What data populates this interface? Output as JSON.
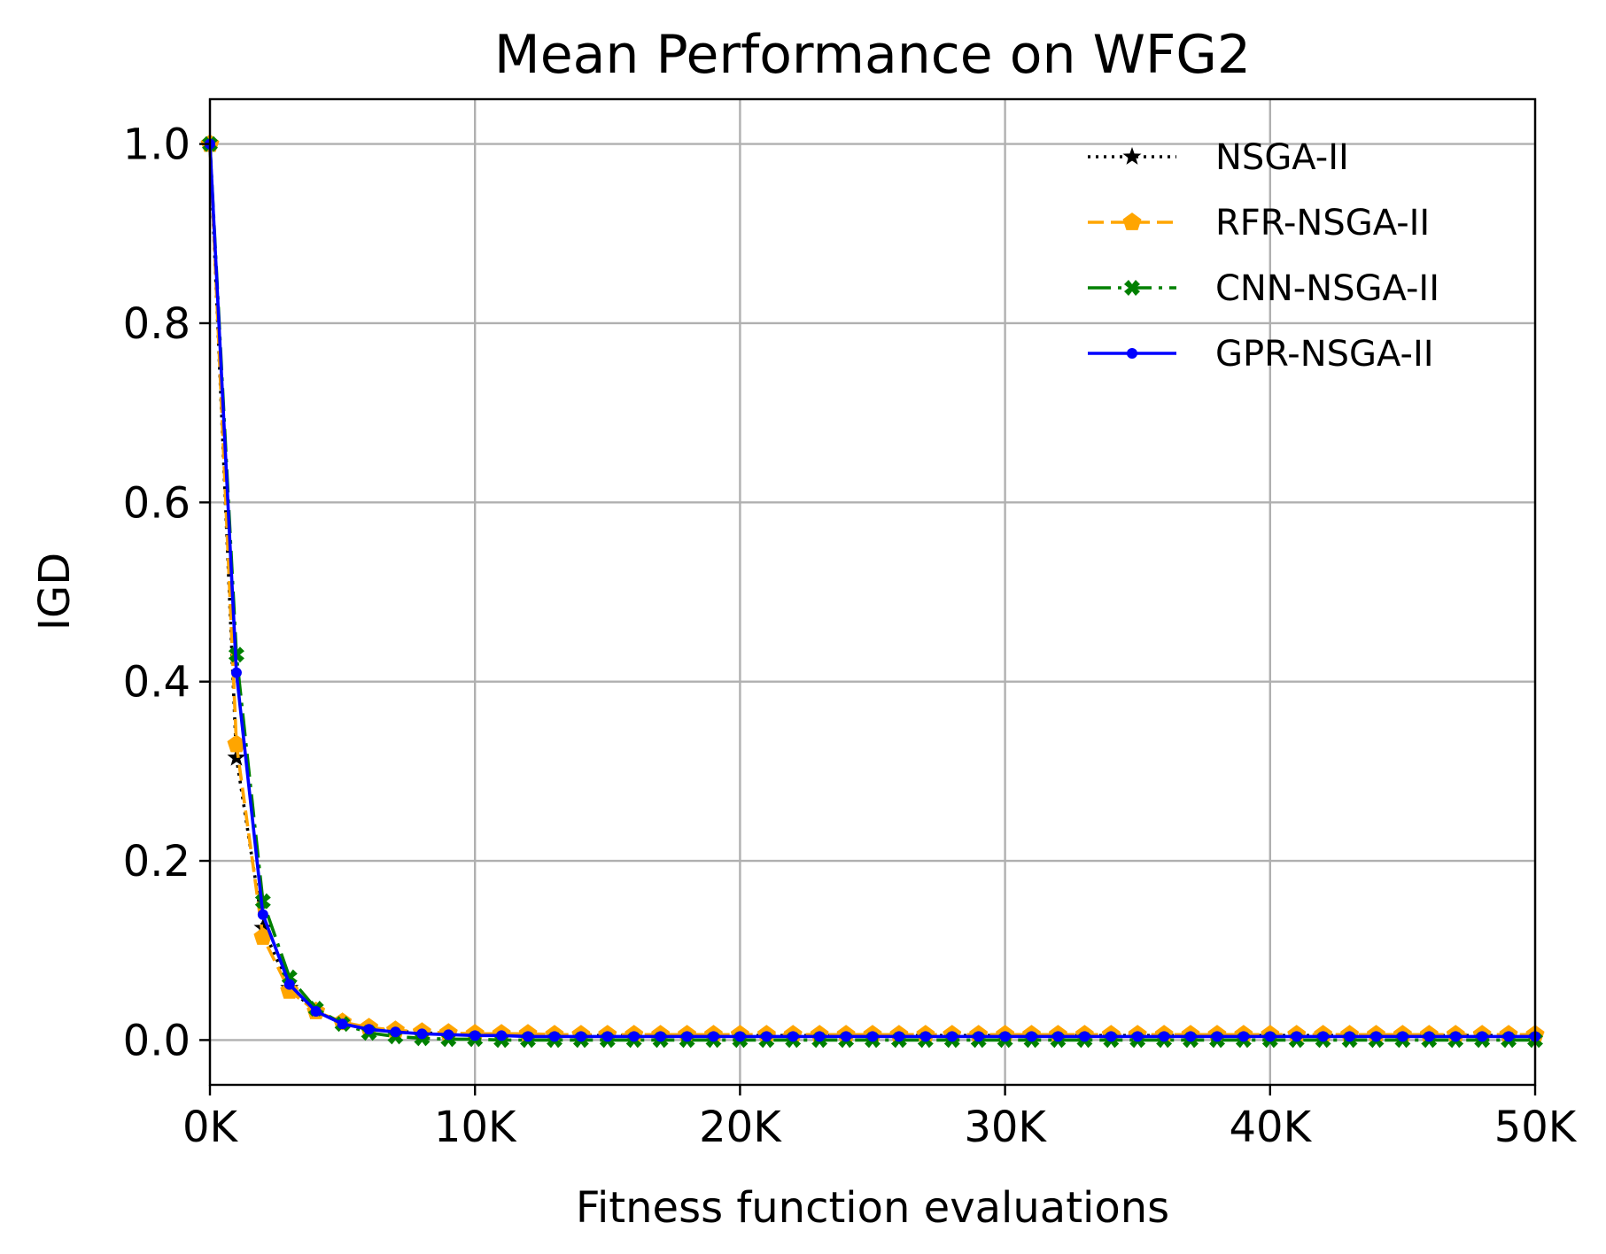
{
  "chart_data": {
    "type": "line",
    "title": "Mean Performance on WFG2",
    "xlabel": "Fitness function evaluations",
    "ylabel": "IGD",
    "xlim": [
      0,
      50000
    ],
    "ylim": [
      -0.05,
      1.05
    ],
    "grid": true,
    "legend_position": "top-right",
    "x_ticks": [
      {
        "value": 0,
        "label": "0K"
      },
      {
        "value": 10000,
        "label": "10K"
      },
      {
        "value": 20000,
        "label": "20K"
      },
      {
        "value": 30000,
        "label": "30K"
      },
      {
        "value": 40000,
        "label": "40K"
      },
      {
        "value": 50000,
        "label": "50K"
      }
    ],
    "y_ticks": [
      {
        "value": 0.0,
        "label": "0.0"
      },
      {
        "value": 0.2,
        "label": "0.2"
      },
      {
        "value": 0.4,
        "label": "0.4"
      },
      {
        "value": 0.6,
        "label": "0.6"
      },
      {
        "value": 0.8,
        "label": "0.8"
      },
      {
        "value": 1.0,
        "label": "1.0"
      }
    ],
    "x": [
      0,
      1000,
      2000,
      3000,
      4000,
      5000,
      6000,
      7000,
      8000,
      9000,
      10000,
      11000,
      12000,
      13000,
      14000,
      15000,
      16000,
      17000,
      18000,
      19000,
      20000,
      21000,
      22000,
      23000,
      24000,
      25000,
      26000,
      27000,
      28000,
      29000,
      30000,
      31000,
      32000,
      33000,
      34000,
      35000,
      36000,
      37000,
      38000,
      39000,
      40000,
      41000,
      42000,
      43000,
      44000,
      45000,
      46000,
      47000,
      48000,
      49000,
      50000
    ],
    "series": [
      {
        "name": "NSGA-II",
        "color": "#000000",
        "line_style": "dotted",
        "marker": "star",
        "values": [
          1.0,
          0.315,
          0.125,
          0.058,
          0.032,
          0.02,
          0.013,
          0.01,
          0.008,
          0.007,
          0.006,
          0.006,
          0.005,
          0.005,
          0.005,
          0.005,
          0.005,
          0.005,
          0.005,
          0.005,
          0.005,
          0.005,
          0.005,
          0.005,
          0.005,
          0.005,
          0.005,
          0.005,
          0.005,
          0.005,
          0.005,
          0.005,
          0.005,
          0.005,
          0.005,
          0.005,
          0.005,
          0.005,
          0.005,
          0.005,
          0.005,
          0.005,
          0.005,
          0.005,
          0.005,
          0.005,
          0.005,
          0.005,
          0.005,
          0.005,
          0.005
        ]
      },
      {
        "name": "RFR-NSGA-II",
        "color": "#ffa500",
        "line_style": "dashed",
        "marker": "pentagon",
        "values": [
          1.0,
          0.33,
          0.115,
          0.055,
          0.032,
          0.02,
          0.014,
          0.011,
          0.009,
          0.008,
          0.007,
          0.007,
          0.007,
          0.006,
          0.006,
          0.006,
          0.006,
          0.006,
          0.006,
          0.006,
          0.006,
          0.006,
          0.006,
          0.006,
          0.006,
          0.006,
          0.006,
          0.006,
          0.006,
          0.006,
          0.006,
          0.006,
          0.006,
          0.006,
          0.006,
          0.006,
          0.006,
          0.006,
          0.006,
          0.006,
          0.006,
          0.006,
          0.006,
          0.006,
          0.006,
          0.006,
          0.006,
          0.006,
          0.006,
          0.006,
          0.006
        ]
      },
      {
        "name": "CNN-NSGA-II",
        "color": "#008000",
        "line_style": "dashdot",
        "marker": "x",
        "values": [
          1.0,
          0.43,
          0.155,
          0.07,
          0.035,
          0.018,
          0.008,
          0.004,
          0.002,
          0.001,
          0.001,
          0.0,
          0.0,
          0.0,
          0.0,
          0.0,
          0.0,
          0.0,
          0.0,
          0.0,
          0.0,
          0.0,
          0.0,
          0.0,
          0.0,
          0.0,
          0.0,
          0.0,
          0.0,
          0.0,
          0.0,
          0.0,
          0.0,
          0.0,
          0.0,
          0.0,
          0.0,
          0.0,
          0.0,
          0.0,
          0.0,
          0.0,
          0.0,
          0.0,
          0.0,
          0.0,
          0.0,
          0.0,
          0.0,
          0.0,
          0.0
        ]
      },
      {
        "name": "GPR-NSGA-II",
        "color": "#0000ff",
        "line_style": "solid",
        "marker": "dot",
        "values": [
          1.0,
          0.41,
          0.14,
          0.062,
          0.032,
          0.018,
          0.012,
          0.009,
          0.007,
          0.006,
          0.005,
          0.005,
          0.004,
          0.004,
          0.004,
          0.004,
          0.004,
          0.004,
          0.004,
          0.004,
          0.004,
          0.004,
          0.004,
          0.004,
          0.004,
          0.004,
          0.004,
          0.004,
          0.004,
          0.004,
          0.004,
          0.004,
          0.004,
          0.004,
          0.004,
          0.004,
          0.004,
          0.004,
          0.004,
          0.004,
          0.004,
          0.004,
          0.004,
          0.004,
          0.004,
          0.004,
          0.004,
          0.004,
          0.004,
          0.004,
          0.004
        ]
      }
    ]
  }
}
